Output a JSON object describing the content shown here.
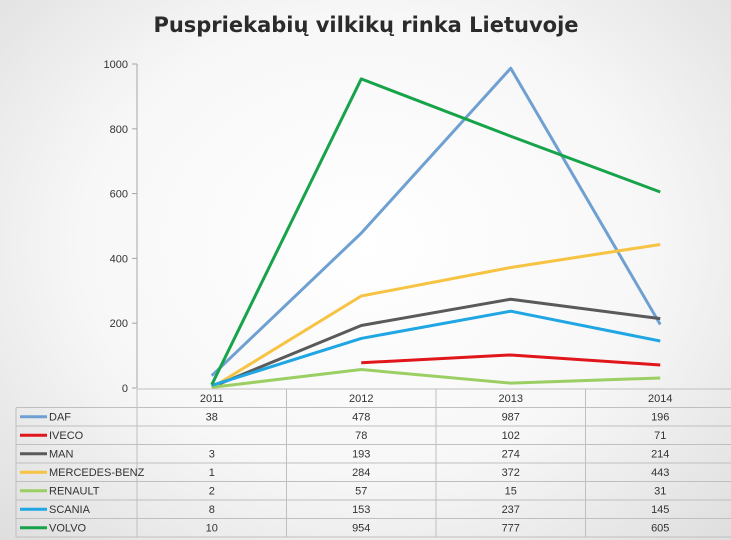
{
  "chart_data": {
    "type": "line",
    "title": "Puspriekabių vilkikų rinka Lietuvoje",
    "categories": [
      "2011",
      "2012",
      "2013",
      "2014"
    ],
    "ylim": [
      0,
      1000
    ],
    "yticks": [
      "0",
      "200",
      "400",
      "600",
      "800",
      "1000"
    ],
    "grid": false,
    "legend_placement": "data table below chart",
    "series": [
      {
        "name": "DAF",
        "color": "#6fa0d2",
        "values": [
          38,
          478,
          987,
          196
        ],
        "labels": [
          "38",
          "478",
          "987",
          "196"
        ]
      },
      {
        "name": "IVECO",
        "color": "#e0161b",
        "values": [
          null,
          78,
          102,
          71
        ],
        "labels": [
          "",
          "78",
          "102",
          "71"
        ]
      },
      {
        "name": "MAN",
        "color": "#5a5a5a",
        "values": [
          3,
          193,
          274,
          214
        ],
        "labels": [
          "3",
          "193",
          "274",
          "214"
        ]
      },
      {
        "name": "MERCEDES-BENZ",
        "color": "#f6c342",
        "values": [
          1,
          284,
          372,
          443
        ],
        "labels": [
          "1",
          "284",
          "372",
          "443"
        ]
      },
      {
        "name": "RENAULT",
        "color": "#9bcf63",
        "values": [
          2,
          57,
          15,
          31
        ],
        "labels": [
          "2",
          "57",
          "15",
          "31"
        ]
      },
      {
        "name": "SCANIA",
        "color": "#1fa6e3",
        "values": [
          8,
          153,
          237,
          145
        ],
        "labels": [
          "8",
          "153",
          "237",
          "145"
        ]
      },
      {
        "name": "VOLVO",
        "color": "#17a34a",
        "values": [
          10,
          954,
          777,
          605
        ],
        "labels": [
          "10",
          "954",
          "777",
          "605"
        ]
      }
    ]
  }
}
